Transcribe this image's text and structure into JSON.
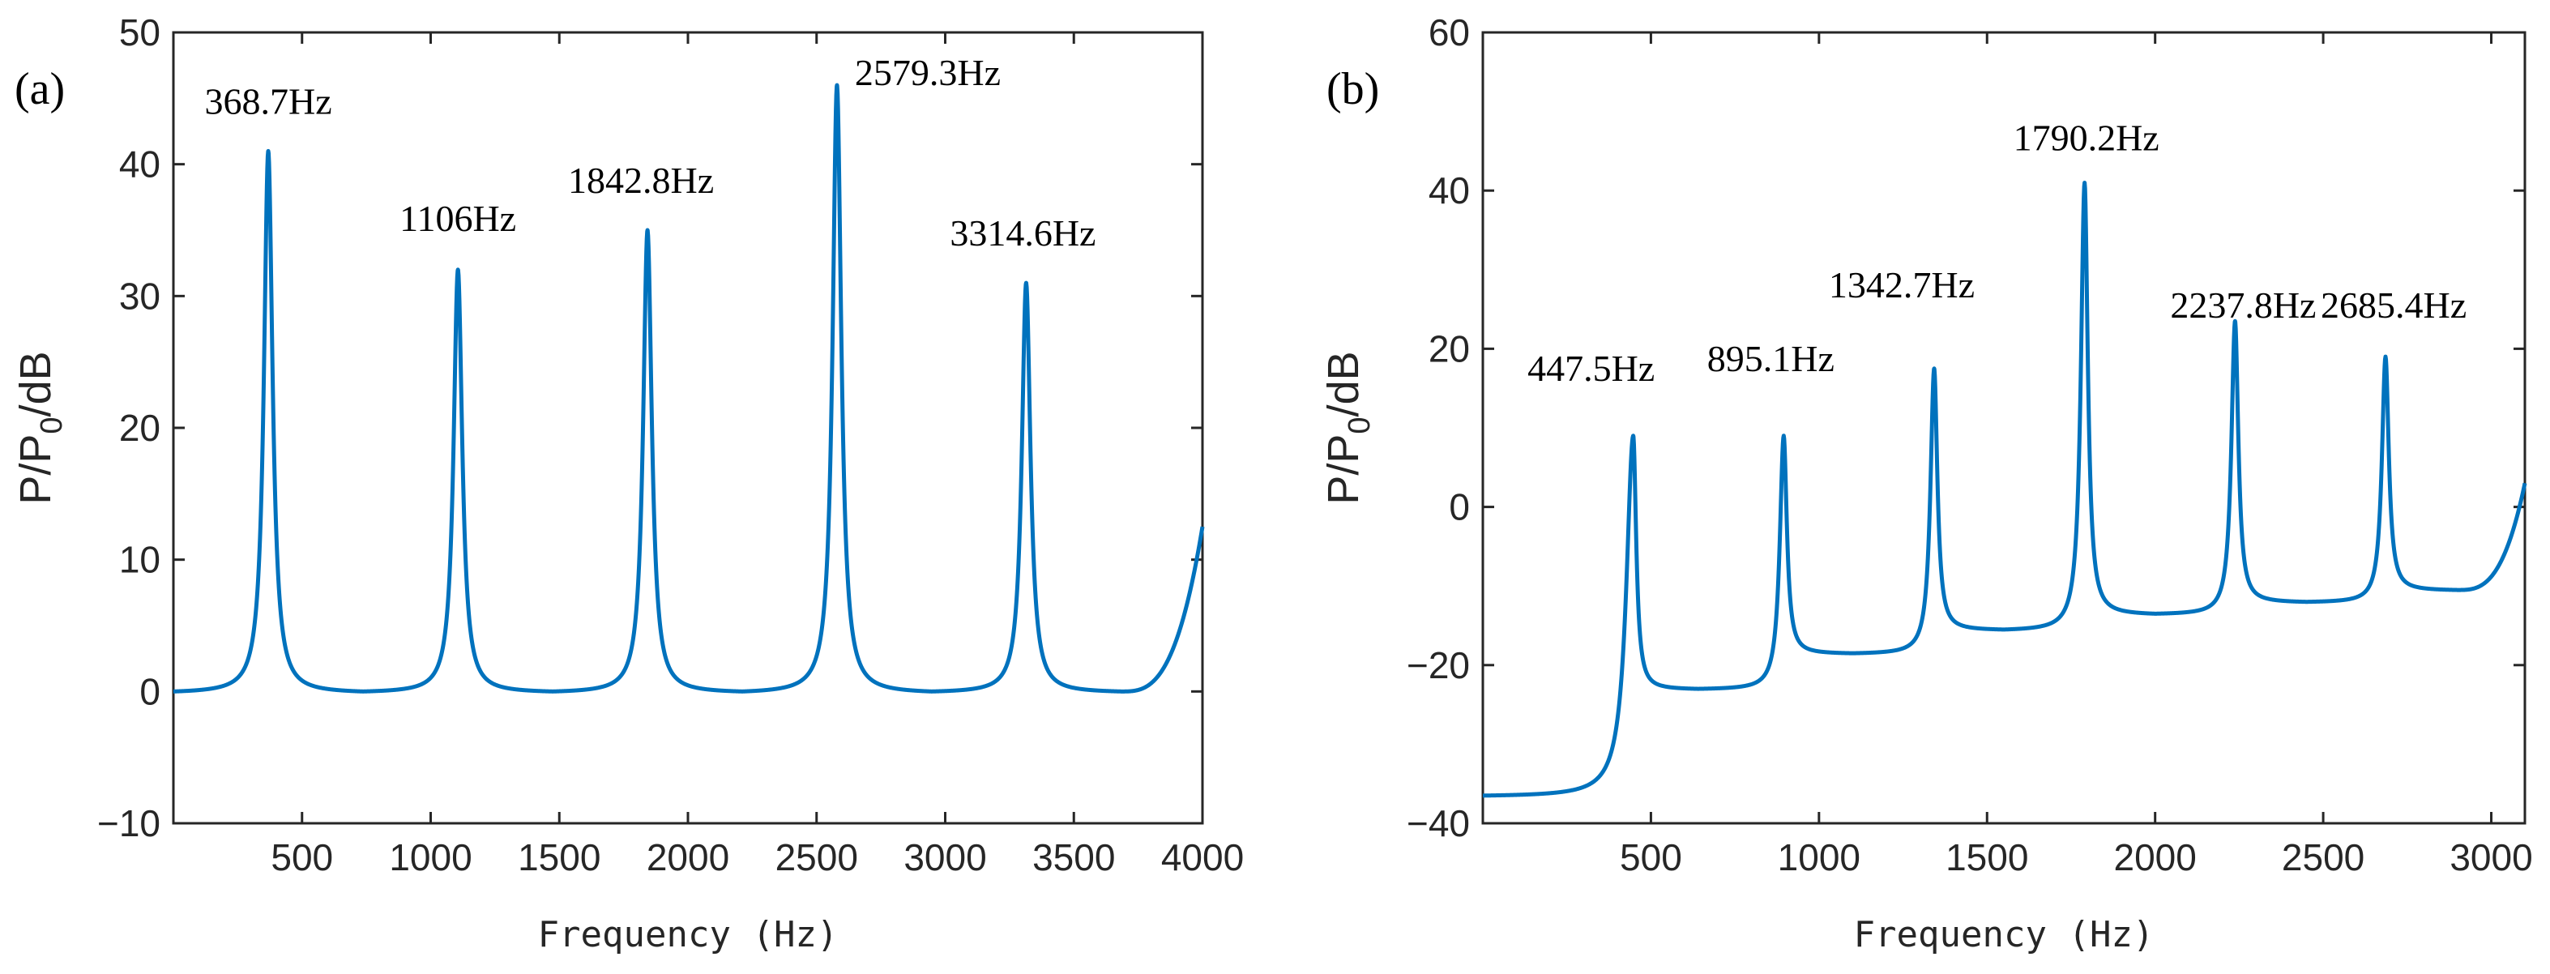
{
  "chart_data": [
    {
      "type": "line",
      "panel_label": "(a)",
      "xlabel": "Frequency (Hz)",
      "ylabel_main": "P/P",
      "ylabel_sub": "0",
      "ylabel_tail": "/dB",
      "xlim": [
        0,
        4000
      ],
      "ylim": [
        -10,
        50
      ],
      "xticks": [
        500,
        1000,
        1500,
        2000,
        2500,
        3000,
        3500,
        4000
      ],
      "yticks": [
        -10,
        0,
        10,
        20,
        30,
        40,
        50
      ],
      "x_tick_labels": [
        "500",
        "1000",
        "1500",
        "2000",
        "2500",
        "3000",
        "3500",
        "4000"
      ],
      "y_tick_labels": [
        "−10",
        "0",
        "10",
        "20",
        "30",
        "40",
        "50"
      ],
      "color": "#0072BD",
      "peaks": [
        {
          "x": 368.7,
          "y": 41,
          "label": "368.7Hz"
        },
        {
          "x": 1106,
          "y": 32,
          "label": "1106Hz"
        },
        {
          "x": 1842.8,
          "y": 35,
          "label": "1842.8Hz"
        },
        {
          "x": 2579.3,
          "y": 46,
          "label": "2579.3Hz"
        },
        {
          "x": 3314.6,
          "y": 31,
          "label": "3314.6Hz"
        }
      ],
      "minima": [
        {
          "x": 0,
          "y": 0
        },
        {
          "x": 737,
          "y": 0
        },
        {
          "x": 1474,
          "y": 0
        },
        {
          "x": 2211,
          "y": 0
        },
        {
          "x": 2947,
          "y": 0
        },
        {
          "x": 3684,
          "y": 0
        }
      ],
      "end_point": {
        "x": 4000,
        "y": 12.5
      }
    },
    {
      "type": "line",
      "panel_label": "(b)",
      "xlabel": "Frequency (Hz)",
      "ylabel_main": "P/P",
      "ylabel_sub": "0",
      "ylabel_tail": "/dB",
      "xlim": [
        0,
        3100
      ],
      "ylim": [
        -40,
        60
      ],
      "xticks": [
        500,
        1000,
        1500,
        2000,
        2500,
        3000
      ],
      "yticks": [
        -40,
        -20,
        0,
        20,
        40,
        60
      ],
      "x_tick_labels": [
        "500",
        "1000",
        "1500",
        "2000",
        "2500",
        "3000"
      ],
      "y_tick_labels": [
        "−40",
        "−20",
        "0",
        "20",
        "40",
        "60"
      ],
      "color": "#0072BD",
      "peaks": [
        {
          "x": 447.5,
          "y": 9,
          "label": "447.5Hz"
        },
        {
          "x": 895.1,
          "y": 9,
          "label": "895.1Hz"
        },
        {
          "x": 1342.7,
          "y": 17.5,
          "label": "1342.7Hz"
        },
        {
          "x": 1790.2,
          "y": 41,
          "label": "1790.2Hz"
        },
        {
          "x": 2237.8,
          "y": 23.5,
          "label": "2237.8Hz"
        },
        {
          "x": 2685.4,
          "y": 19,
          "label": "2685.4Hz"
        }
      ],
      "minima": [
        {
          "x": 0,
          "y": -36.5
        },
        {
          "x": 640,
          "y": -23
        },
        {
          "x": 1100,
          "y": -18.5
        },
        {
          "x": 1550,
          "y": -15.5
        },
        {
          "x": 2000,
          "y": -13.5
        },
        {
          "x": 2450,
          "y": -12
        },
        {
          "x": 2900,
          "y": -10.5
        }
      ],
      "end_point": {
        "x": 3100,
        "y": 3
      }
    }
  ]
}
